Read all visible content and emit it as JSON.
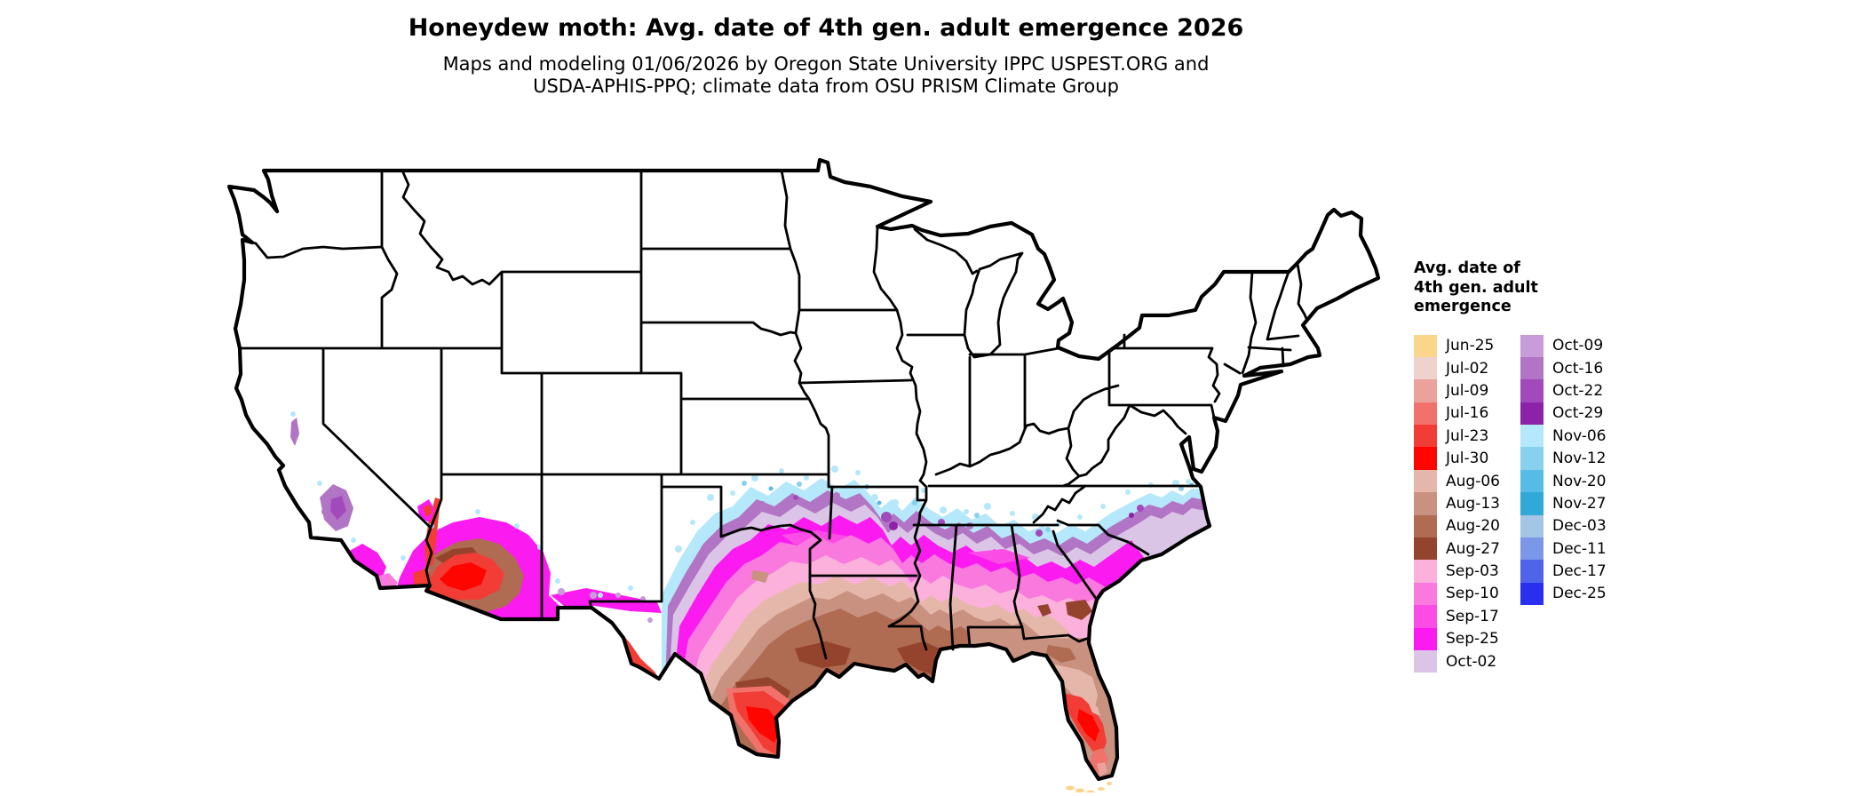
{
  "header": {
    "title": "Honeydew moth: Avg. date of 4th gen. adult emergence 2026",
    "subtitle_line1": "Maps and modeling 01/06/2026 by Oregon State University IPPC USPEST.ORG and",
    "subtitle_line2": "USDA-APHIS-PPQ; climate data from OSU PRISM Climate Group"
  },
  "legend": {
    "title_lines": [
      "Avg. date of",
      "4th gen. adult",
      "emergence"
    ],
    "column1": [
      "Jun-25",
      "Jul-02",
      "Jul-09",
      "Jul-16",
      "Jul-23",
      "Jul-30",
      "Aug-06",
      "Aug-13",
      "Aug-20",
      "Aug-27",
      "Sep-03",
      "Sep-10",
      "Sep-17",
      "Sep-25",
      "Oct-02"
    ],
    "column2": [
      "Oct-09",
      "Oct-16",
      "Oct-22",
      "Oct-29",
      "Nov-06",
      "Nov-12",
      "Nov-20",
      "Nov-27",
      "Dec-03",
      "Dec-11",
      "Dec-17",
      "Dec-25"
    ]
  },
  "palette": {
    "Jun-25": "#FAD58C",
    "Jul-02": "#EFD2CE",
    "Jul-09": "#ECA29C",
    "Jul-16": "#F0726B",
    "Jul-23": "#F23D36",
    "Jul-30": "#FE0500",
    "Aug-06": "#E5B7AB",
    "Aug-13": "#C9917F",
    "Aug-20": "#B06B53",
    "Aug-27": "#94442C",
    "Sep-03": "#FCB1DC",
    "Sep-10": "#FA79DF",
    "Sep-17": "#FB4DE6",
    "Sep-25": "#FB1BF0",
    "Oct-02": "#DBC5E7",
    "Oct-09": "#C89BD9",
    "Oct-16": "#B274C5",
    "Oct-22": "#A24ABC",
    "Oct-29": "#8C22A8",
    "Nov-06": "#B5E8FA",
    "Nov-12": "#87D1EE",
    "Nov-20": "#57BCE5",
    "Nov-27": "#30A9D9",
    "Dec-03": "#A5C5E6",
    "Dec-11": "#7D97E8",
    "Dec-17": "#4F64E9",
    "Dec-25": "#2A2FEF"
  },
  "map": {
    "region": "Contiguous United States",
    "background": "#ffffff",
    "border_color": "#000000"
  }
}
